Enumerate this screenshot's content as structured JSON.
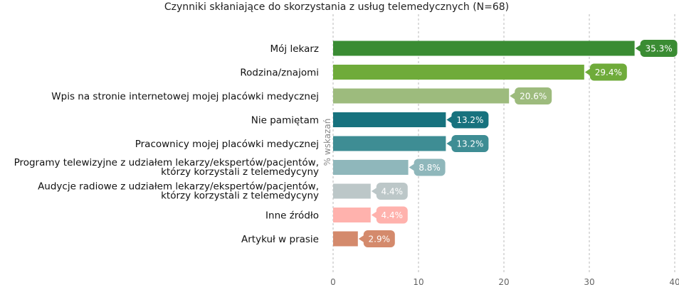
{
  "chart_data": {
    "type": "bar",
    "orientation": "horizontal",
    "title": "Czynniki skłaniające do skorzystania z usług telemedycznych (N=68)",
    "xlabel": "",
    "ylabel": "% wskazań",
    "xlim": [
      0,
      40
    ],
    "xticks": [
      "0",
      "10",
      "20",
      "30",
      "40"
    ],
    "grid": true,
    "categories": [
      [
        "Mój lekarz"
      ],
      [
        "Rodzina/znajomi"
      ],
      [
        "Wpis na stronie internetowej mojej placówki medycznej"
      ],
      [
        "Nie pamiętam"
      ],
      [
        "Pracownicy mojej placówki medycznej"
      ],
      [
        "Programy telewizyjne z udziałem lekarzy/ekspertów/pacjentów,",
        "którzy korzystali z telemedycyny"
      ],
      [
        "Audycje radiowe z udziałem lekarzy/ekspertów/pacjentów,",
        "którzy korzystali z telemedycyny"
      ],
      [
        "Inne źródło"
      ],
      [
        "Artykuł w prasie"
      ]
    ],
    "values": [
      35.3,
      29.4,
      20.6,
      13.2,
      13.2,
      8.8,
      4.4,
      4.4,
      2.9
    ],
    "data_labels": [
      "35.3%",
      "29.4%",
      "20.6%",
      "13.2%",
      "13.2%",
      "8.8%",
      "4.4%",
      "4.4%",
      "2.9%"
    ],
    "colors": [
      "#3a8c33",
      "#6fab3a",
      "#9dbb7d",
      "#17727e",
      "#3e8d94",
      "#8fb7bb",
      "#bcc7c8",
      "#ffb2ad",
      "#d48a6c"
    ]
  }
}
